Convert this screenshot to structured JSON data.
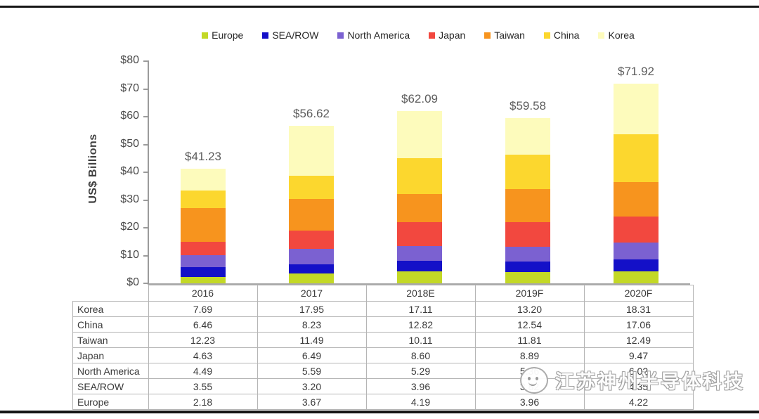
{
  "chart_data": {
    "type": "bar",
    "stacked": true,
    "title": "",
    "xlabel": "",
    "ylabel": "US$ Billions",
    "ylim": [
      0,
      80
    ],
    "y_tick_step": 10,
    "y_tick_prefix": "$",
    "grid": false,
    "legend_position": "top",
    "categories": [
      "2016",
      "2017",
      "2018E",
      "2019F",
      "2020F"
    ],
    "series": [
      {
        "name": "Europe",
        "color": "#c3d826",
        "values": [
          2.18,
          3.67,
          4.19,
          3.96,
          4.22
        ]
      },
      {
        "name": "SEA/ROW",
        "color": "#1410c8",
        "values": [
          3.55,
          3.2,
          3.96,
          3.82,
          4.35
        ]
      },
      {
        "name": "North America",
        "color": "#7b61d1",
        "values": [
          4.49,
          5.59,
          5.29,
          5.36,
          6.02
        ]
      },
      {
        "name": "Japan",
        "color": "#f2483f",
        "values": [
          4.63,
          6.49,
          8.6,
          8.89,
          9.47
        ]
      },
      {
        "name": "Taiwan",
        "color": "#f7941e",
        "values": [
          12.23,
          11.49,
          10.11,
          11.81,
          12.49
        ]
      },
      {
        "name": "China",
        "color": "#fcd72e",
        "values": [
          6.46,
          8.23,
          12.82,
          12.54,
          17.06
        ]
      },
      {
        "name": "Korea",
        "color": "#fdfbbc",
        "values": [
          7.69,
          17.95,
          17.11,
          13.2,
          18.31
        ]
      }
    ],
    "totals": [
      41.23,
      56.62,
      62.09,
      59.58,
      71.92
    ],
    "total_label_prefix": "$",
    "table_row_order": [
      "Korea",
      "China",
      "Taiwan",
      "Japan",
      "North America",
      "SEA/ROW",
      "Europe"
    ]
  },
  "watermark": {
    "text": "江苏神州半导体科技"
  }
}
